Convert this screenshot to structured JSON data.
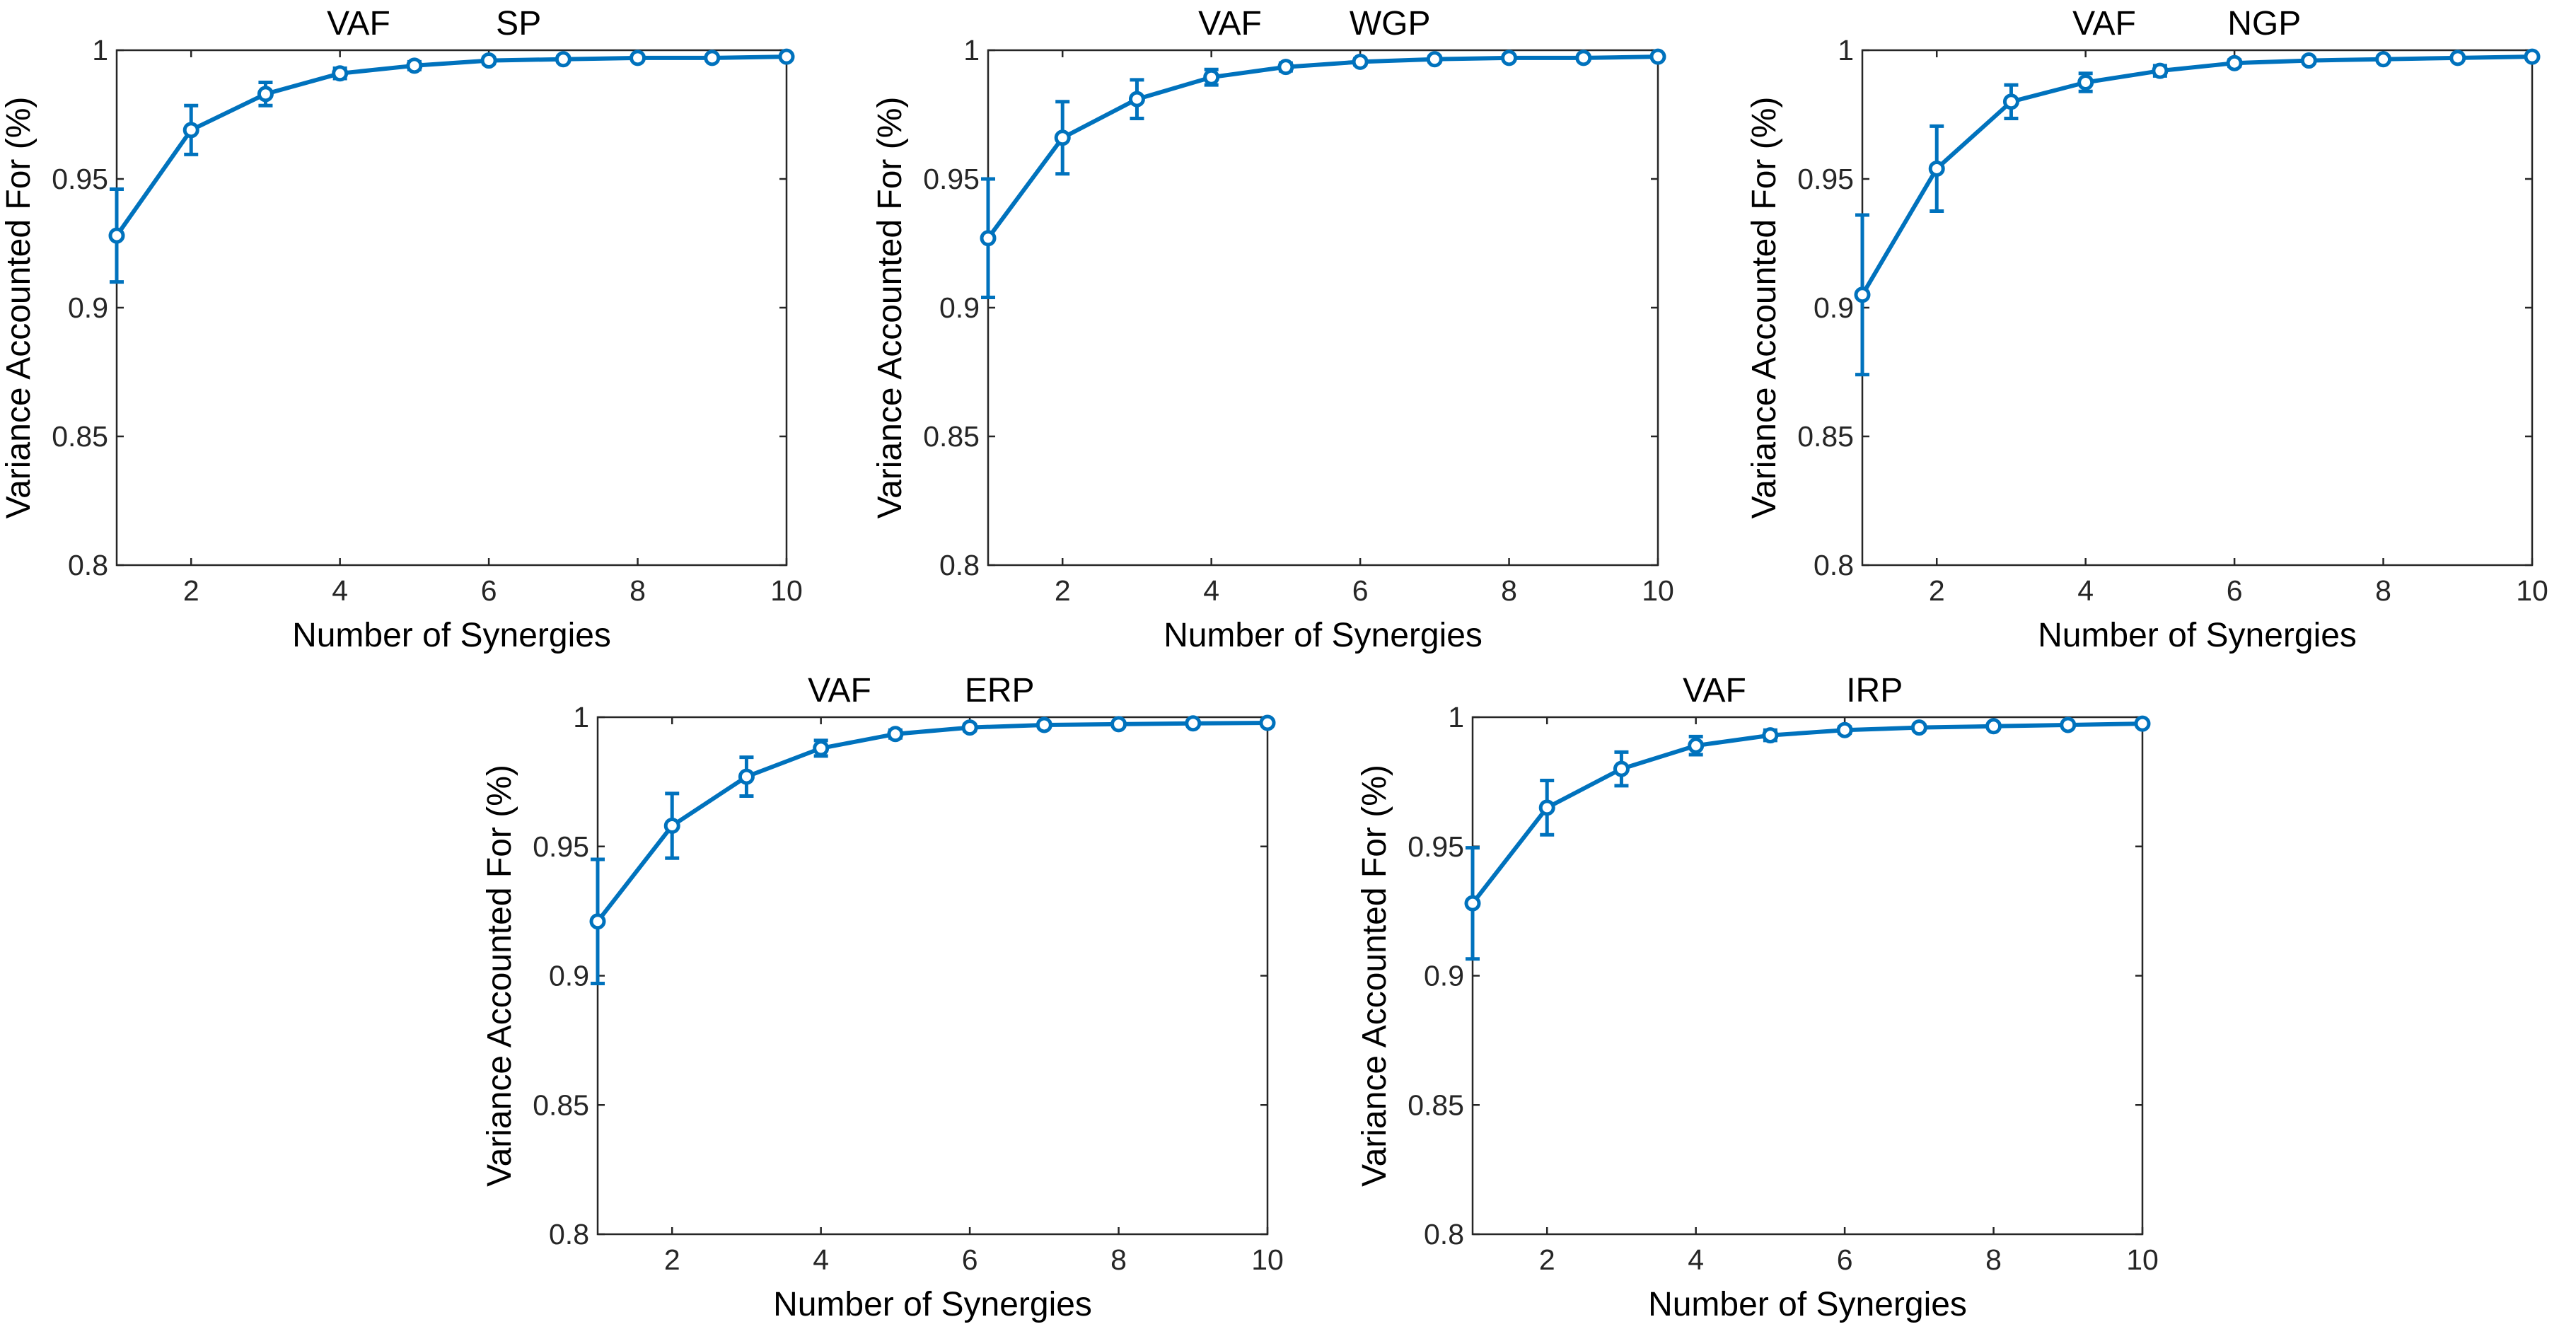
{
  "style": {
    "series_color": "#0072BD",
    "axis_color": "#262626"
  },
  "chart_data": [
    {
      "type": "line",
      "title_left": "VAF",
      "title_right": "SP",
      "xlabel": "Number of Synergies",
      "ylabel": "Variance Accounted For (%)",
      "xlim": [
        1,
        10
      ],
      "ylim": [
        0.8,
        1
      ],
      "xticks": [
        2,
        4,
        6,
        8,
        10
      ],
      "yticks": [
        0.8,
        0.85,
        0.9,
        0.95,
        1
      ],
      "ytick_labels": [
        "0.8",
        "0.85",
        "0.9",
        "0.95",
        "1"
      ],
      "grid": false,
      "x": [
        1,
        2,
        3,
        4,
        5,
        6,
        7,
        8,
        9,
        10
      ],
      "values": [
        0.928,
        0.969,
        0.983,
        0.991,
        0.994,
        0.996,
        0.9965,
        0.997,
        0.997,
        0.9975
      ],
      "errors": [
        0.018,
        0.0095,
        0.0045,
        0.002,
        0.0015,
        0.0012,
        0.001,
        0.0008,
        0.0008,
        0.0006
      ]
    },
    {
      "type": "line",
      "title_left": "VAF",
      "title_right": "WGP",
      "xlabel": "Number of Synergies",
      "ylabel": "Variance Accounted For (%)",
      "xlim": [
        1,
        10
      ],
      "ylim": [
        0.8,
        1
      ],
      "xticks": [
        2,
        4,
        6,
        8,
        10
      ],
      "yticks": [
        0.8,
        0.85,
        0.9,
        0.95,
        1
      ],
      "ytick_labels": [
        "0.8",
        "0.85",
        "0.9",
        "0.95",
        "1"
      ],
      "grid": false,
      "x": [
        1,
        2,
        3,
        4,
        5,
        6,
        7,
        8,
        9,
        10
      ],
      "values": [
        0.927,
        0.966,
        0.981,
        0.9895,
        0.9935,
        0.9955,
        0.9965,
        0.997,
        0.997,
        0.9975
      ],
      "errors": [
        0.023,
        0.014,
        0.0075,
        0.003,
        0.0015,
        0.0012,
        0.001,
        0.0008,
        0.0008,
        0.0006
      ]
    },
    {
      "type": "line",
      "title_left": "VAF",
      "title_right": "NGP",
      "xlabel": "Number of Synergies",
      "ylabel": "Variance Accounted For (%)",
      "xlim": [
        1,
        10
      ],
      "ylim": [
        0.8,
        1
      ],
      "xticks": [
        2,
        4,
        6,
        8,
        10
      ],
      "yticks": [
        0.8,
        0.85,
        0.9,
        0.95,
        1
      ],
      "ytick_labels": [
        "0.8",
        "0.85",
        "0.9",
        "0.95",
        "1"
      ],
      "grid": false,
      "x": [
        1,
        2,
        3,
        4,
        5,
        6,
        7,
        8,
        9,
        10
      ],
      "values": [
        0.905,
        0.954,
        0.98,
        0.9875,
        0.992,
        0.995,
        0.996,
        0.9965,
        0.997,
        0.9975
      ],
      "errors": [
        0.031,
        0.0165,
        0.0065,
        0.0035,
        0.002,
        0.0012,
        0.001,
        0.0008,
        0.0008,
        0.0006
      ]
    },
    {
      "type": "line",
      "title_left": "VAF",
      "title_right": "ERP",
      "xlabel": "Number of Synergies",
      "ylabel": "Variance Accounted For (%)",
      "xlim": [
        1,
        10
      ],
      "ylim": [
        0.8,
        1
      ],
      "xticks": [
        2,
        4,
        6,
        8,
        10
      ],
      "yticks": [
        0.8,
        0.85,
        0.9,
        0.95,
        1
      ],
      "ytick_labels": [
        "0.8",
        "0.85",
        "0.9",
        "0.95",
        "1"
      ],
      "grid": false,
      "x": [
        1,
        2,
        3,
        4,
        5,
        6,
        7,
        8,
        9,
        10
      ],
      "values": [
        0.921,
        0.958,
        0.977,
        0.988,
        0.9935,
        0.996,
        0.997,
        0.9973,
        0.9976,
        0.9978
      ],
      "errors": [
        0.024,
        0.0125,
        0.0075,
        0.003,
        0.0015,
        0.0012,
        0.001,
        0.0008,
        0.0007,
        0.0006
      ]
    },
    {
      "type": "line",
      "title_left": "VAF",
      "title_right": "IRP",
      "xlabel": "Number of Synergies",
      "ylabel": "Variance Accounted For (%)",
      "xlim": [
        1,
        10
      ],
      "ylim": [
        0.8,
        1
      ],
      "xticks": [
        2,
        4,
        6,
        8,
        10
      ],
      "yticks": [
        0.8,
        0.85,
        0.9,
        0.95,
        1
      ],
      "ytick_labels": [
        "0.8",
        "0.85",
        "0.9",
        "0.95",
        "1"
      ],
      "grid": false,
      "x": [
        1,
        2,
        3,
        4,
        5,
        6,
        7,
        8,
        9,
        10
      ],
      "values": [
        0.928,
        0.965,
        0.98,
        0.989,
        0.993,
        0.995,
        0.996,
        0.9965,
        0.997,
        0.9975
      ],
      "errors": [
        0.0215,
        0.0105,
        0.0065,
        0.0035,
        0.002,
        0.0012,
        0.001,
        0.0008,
        0.0008,
        0.0006
      ]
    }
  ]
}
